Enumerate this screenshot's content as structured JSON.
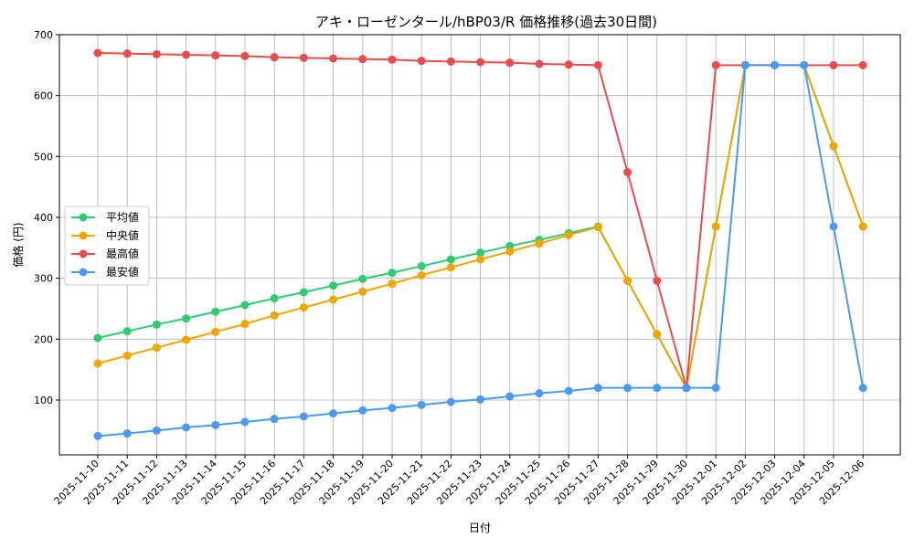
{
  "chart_data": {
    "type": "line",
    "title": "アキ・ローゼンタール/hBP03/R 価格推移(過去30日間)",
    "xlabel": "日付",
    "ylabel": "価格 (円)",
    "ylim": [
      10,
      700
    ],
    "yticks": [
      100,
      200,
      300,
      400,
      500,
      600,
      700
    ],
    "grid": true,
    "legend_position": "center-left",
    "categories": [
      "2025-11-10",
      "2025-11-11",
      "2025-11-12",
      "2025-11-13",
      "2025-11-14",
      "2025-11-15",
      "2025-11-16",
      "2025-11-17",
      "2025-11-18",
      "2025-11-19",
      "2025-11-20",
      "2025-11-21",
      "2025-11-22",
      "2025-11-23",
      "2025-11-24",
      "2025-11-25",
      "2025-11-26",
      "2025-11-27",
      "2025-11-28",
      "2025-11-29",
      "2025-11-30",
      "2025-12-01",
      "2025-12-02",
      "2025-12-03",
      "2025-12-04",
      "2025-12-05",
      "2025-12-06"
    ],
    "series": [
      {
        "name": "平均値",
        "color": "#2ecc71",
        "values": [
          202,
          213,
          224,
          234,
          245,
          256,
          267,
          277,
          288,
          299,
          309,
          320,
          331,
          342,
          353,
          363,
          374,
          385,
          296,
          208,
          120,
          385,
          650,
          650,
          650,
          517,
          385
        ]
      },
      {
        "name": "中央値",
        "color": "#f0a500",
        "values": [
          160,
          173,
          186,
          199,
          212,
          225,
          239,
          252,
          265,
          278,
          291,
          305,
          318,
          331,
          344,
          357,
          371,
          384,
          296,
          208,
          120,
          385,
          650,
          650,
          650,
          517,
          385
        ]
      },
      {
        "name": "最高値",
        "color": "#e84c4c",
        "values": [
          670,
          669,
          668,
          667,
          666,
          665,
          663,
          662,
          661,
          660,
          659,
          657,
          656,
          655,
          654,
          652,
          651,
          650,
          474,
          296,
          120,
          650,
          650,
          650,
          650,
          650,
          650
        ]
      },
      {
        "name": "最安値",
        "color": "#4a9af0",
        "values": [
          41,
          45,
          50,
          55,
          59,
          64,
          69,
          73,
          78,
          83,
          87,
          92,
          97,
          101,
          106,
          111,
          115,
          120,
          120,
          120,
          120,
          120,
          650,
          650,
          650,
          385,
          120
        ]
      }
    ]
  }
}
